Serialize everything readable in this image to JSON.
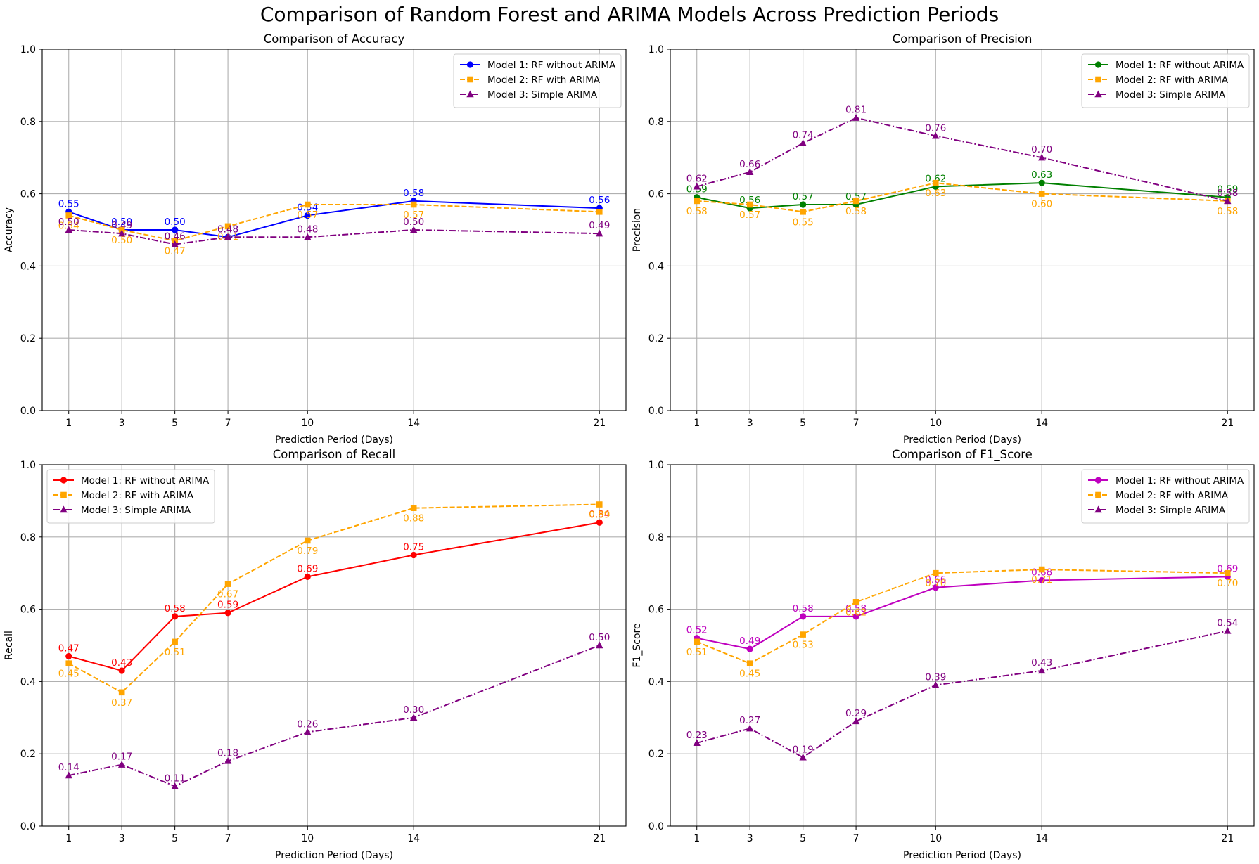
{
  "figure": {
    "title": "Comparison of Random Forest and ARIMA Models Across Prediction Periods"
  },
  "chart_data": [
    {
      "type": "line",
      "title": "Comparison of Accuracy",
      "xlabel": "Prediction Period (Days)",
      "ylabel": "Accuracy",
      "x": [
        1,
        3,
        5,
        7,
        10,
        14,
        21
      ],
      "xticks": [
        "1",
        "3",
        "5",
        "7",
        "10",
        "14",
        "21"
      ],
      "xlim": [
        -0.0,
        22.0
      ],
      "ylim": [
        0.0,
        1.0
      ],
      "yticks": [
        "0.0",
        "0.2",
        "0.4",
        "0.6",
        "0.8",
        "1.0"
      ],
      "grid": true,
      "legend_position": "top-right",
      "series": [
        {
          "name": "Model 1: RF without ARIMA",
          "color": "#0000ff",
          "marker": "circle",
          "dash": "solid",
          "values": [
            0.55,
            0.5,
            0.5,
            0.48,
            0.54,
            0.58,
            0.56
          ],
          "labels": [
            "0.55",
            "0.50",
            "0.50",
            "0.48",
            "0.54",
            "0.58",
            "0.56"
          ],
          "label_side": "above"
        },
        {
          "name": "Model 2: RF with ARIMA",
          "color": "#ffa500",
          "marker": "square",
          "dash": "dashed",
          "values": [
            0.54,
            0.5,
            0.47,
            0.51,
            0.57,
            0.57,
            0.55
          ],
          "labels": [
            "0.54",
            "0.50",
            "0.47",
            "0.51",
            "0.57",
            "0.57",
            ""
          ],
          "label_side": "below"
        },
        {
          "name": "Model 3: Simple ARIMA",
          "color": "#800080",
          "marker": "triangle",
          "dash": "dashdot",
          "values": [
            0.5,
            0.49,
            0.46,
            0.48,
            0.48,
            0.5,
            0.49
          ],
          "labels": [
            "0.50",
            "0.49",
            "0.46",
            "0.48",
            "0.48",
            "0.50",
            "0.49"
          ],
          "label_side": "above"
        }
      ]
    },
    {
      "type": "line",
      "title": "Comparison of Precision",
      "xlabel": "Prediction Period (Days)",
      "ylabel": "Precision",
      "x": [
        1,
        3,
        5,
        7,
        10,
        14,
        21
      ],
      "xticks": [
        "1",
        "3",
        "5",
        "7",
        "10",
        "14",
        "21"
      ],
      "xlim": [
        -0.0,
        22.0
      ],
      "ylim": [
        0.0,
        1.0
      ],
      "yticks": [
        "0.0",
        "0.2",
        "0.4",
        "0.6",
        "0.8",
        "1.0"
      ],
      "grid": true,
      "legend_position": "top-right",
      "series": [
        {
          "name": "Model 1: RF without ARIMA",
          "color": "#008000",
          "marker": "circle",
          "dash": "solid",
          "values": [
            0.59,
            0.56,
            0.57,
            0.57,
            0.62,
            0.63,
            0.59
          ],
          "labels": [
            "0.59",
            "0.56",
            "0.57",
            "0.57",
            "0.62",
            "0.63",
            "0.59"
          ],
          "label_side": "above"
        },
        {
          "name": "Model 2: RF with ARIMA",
          "color": "#ffa500",
          "marker": "square",
          "dash": "dashed",
          "values": [
            0.58,
            0.57,
            0.55,
            0.58,
            0.63,
            0.6,
            0.58
          ],
          "labels": [
            "0.58",
            "0.57",
            "0.55",
            "0.58",
            "0.63",
            "0.60",
            "0.58"
          ],
          "label_side": "below"
        },
        {
          "name": "Model 3: Simple ARIMA",
          "color": "#800080",
          "marker": "triangle",
          "dash": "dashdot",
          "values": [
            0.62,
            0.66,
            0.74,
            0.81,
            0.76,
            0.7,
            0.58
          ],
          "labels": [
            "0.62",
            "0.66",
            "0.74",
            "0.81",
            "0.76",
            "0.70",
            "0.58"
          ],
          "label_side": "above"
        }
      ]
    },
    {
      "type": "line",
      "title": "Comparison of Recall",
      "xlabel": "Prediction Period (Days)",
      "ylabel": "Recall",
      "x": [
        1,
        3,
        5,
        7,
        10,
        14,
        21
      ],
      "xticks": [
        "1",
        "3",
        "5",
        "7",
        "10",
        "14",
        "21"
      ],
      "xlim": [
        -0.0,
        22.0
      ],
      "ylim": [
        0.0,
        1.0
      ],
      "yticks": [
        "0.0",
        "0.2",
        "0.4",
        "0.6",
        "0.8",
        "1.0"
      ],
      "grid": true,
      "legend_position": "top-left",
      "series": [
        {
          "name": "Model 1: RF without ARIMA",
          "color": "#ff0000",
          "marker": "circle",
          "dash": "solid",
          "values": [
            0.47,
            0.43,
            0.58,
            0.59,
            0.69,
            0.75,
            0.84
          ],
          "labels": [
            "0.47",
            "0.43",
            "0.58",
            "0.59",
            "0.69",
            "0.75",
            "0.84"
          ],
          "label_side": "above"
        },
        {
          "name": "Model 2: RF with ARIMA",
          "color": "#ffa500",
          "marker": "square",
          "dash": "dashed",
          "values": [
            0.45,
            0.37,
            0.51,
            0.67,
            0.79,
            0.88,
            0.89
          ],
          "labels": [
            "0.45",
            "0.37",
            "0.51",
            "0.67",
            "0.79",
            "0.88",
            "0.89"
          ],
          "label_side": "below"
        },
        {
          "name": "Model 3: Simple ARIMA",
          "color": "#800080",
          "marker": "triangle",
          "dash": "dashdot",
          "values": [
            0.14,
            0.17,
            0.11,
            0.18,
            0.26,
            0.3,
            0.5
          ],
          "labels": [
            "0.14",
            "0.17",
            "0.11",
            "0.18",
            "0.26",
            "0.30",
            "0.50"
          ],
          "label_side": "above"
        }
      ]
    },
    {
      "type": "line",
      "title": "Comparison of F1_Score",
      "xlabel": "Prediction Period (Days)",
      "ylabel": "F1_Score",
      "x": [
        1,
        3,
        5,
        7,
        10,
        14,
        21
      ],
      "xticks": [
        "1",
        "3",
        "5",
        "7",
        "10",
        "14",
        "21"
      ],
      "xlim": [
        -0.0,
        22.0
      ],
      "ylim": [
        0.0,
        1.0
      ],
      "yticks": [
        "0.0",
        "0.2",
        "0.4",
        "0.6",
        "0.8",
        "1.0"
      ],
      "grid": true,
      "legend_position": "top-right",
      "series": [
        {
          "name": "Model 1: RF without ARIMA",
          "color": "#bf00bf",
          "marker": "circle",
          "dash": "solid",
          "values": [
            0.52,
            0.49,
            0.58,
            0.58,
            0.66,
            0.68,
            0.69
          ],
          "labels": [
            "0.52",
            "0.49",
            "0.58",
            "0.58",
            "0.66",
            "0.68",
            "0.69"
          ],
          "label_side": "above"
        },
        {
          "name": "Model 2: RF with ARIMA",
          "color": "#ffa500",
          "marker": "square",
          "dash": "dashed",
          "values": [
            0.51,
            0.45,
            0.53,
            0.62,
            0.7,
            0.71,
            0.7
          ],
          "labels": [
            "0.51",
            "0.45",
            "0.53",
            "0.62",
            "0.70",
            "0.71",
            "0.70"
          ],
          "label_side": "below"
        },
        {
          "name": "Model 3: Simple ARIMA",
          "color": "#800080",
          "marker": "triangle",
          "dash": "dashdot",
          "values": [
            0.23,
            0.27,
            0.19,
            0.29,
            0.39,
            0.43,
            0.54
          ],
          "labels": [
            "0.23",
            "0.27",
            "0.19",
            "0.29",
            "0.39",
            "0.43",
            "0.54"
          ],
          "label_side": "above"
        }
      ]
    }
  ]
}
